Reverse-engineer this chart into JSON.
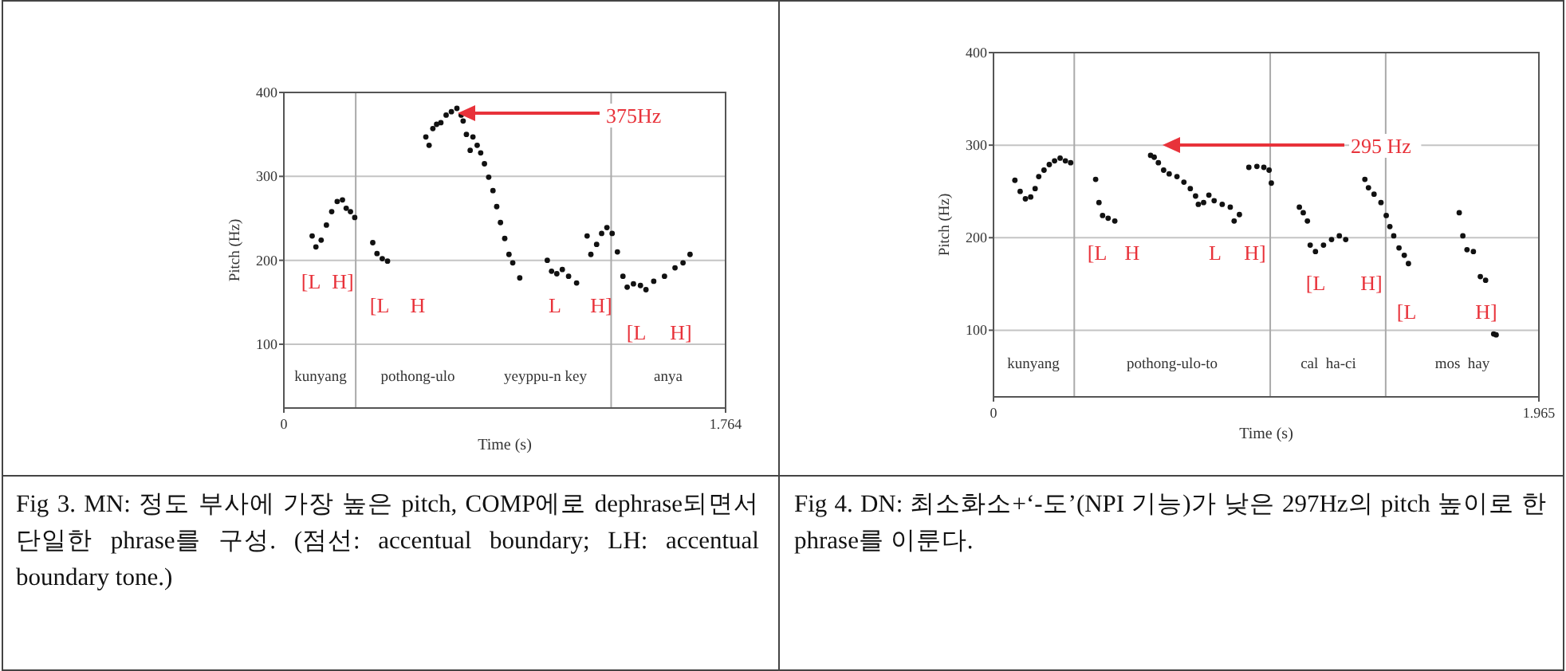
{
  "chart_data": [
    {
      "type": "scatter",
      "xlabel": "Time (s)",
      "ylabel": "Pitch (Hz)",
      "xlim": [
        0,
        1.764
      ],
      "xticks": [
        0,
        1.764
      ],
      "ylim": [
        24,
        400
      ],
      "yticks": [
        100,
        200,
        300,
        400
      ],
      "grid": "y",
      "marker": "circle",
      "series": [
        {
          "color": "#111111",
          "x": [
            0.113,
            0.128,
            0.149,
            0.17,
            0.191,
            0.213,
            0.234,
            0.249,
            0.266,
            0.283,
            0.355,
            0.372,
            0.393,
            0.414,
            0.567,
            0.58,
            0.595,
            0.61,
            0.627,
            0.648,
            0.669,
            0.691,
            0.708,
            0.716,
            0.729,
            0.744,
            0.755,
            0.772,
            0.786,
            0.801,
            0.818,
            0.835,
            0.85,
            0.865,
            0.882,
            0.899,
            0.914,
            0.942,
            1.052,
            1.069,
            1.09,
            1.112,
            1.137,
            1.169,
            1.211,
            1.226,
            1.249,
            1.269,
            1.29,
            1.311,
            1.332,
            1.354,
            1.371,
            1.396,
            1.424,
            1.446,
            1.477,
            1.52,
            1.562,
            1.594,
            1.622
          ],
          "values": [
            229,
            216,
            224,
            242,
            258,
            270,
            272,
            262,
            258,
            251,
            221,
            208,
            202,
            199,
            347,
            337,
            357,
            362,
            364,
            373,
            377,
            381,
            373,
            366,
            350,
            331,
            347,
            337,
            328,
            315,
            299,
            283,
            264,
            245,
            226,
            207,
            197,
            179,
            200,
            187,
            184,
            189,
            181,
            173,
            229,
            207,
            219,
            232,
            239,
            232,
            210,
            181,
            168,
            172,
            170,
            165,
            175,
            181,
            191,
            197,
            207
          ]
        }
      ],
      "ref_lines": [
        {
          "axis": "x",
          "value": 0.287
        },
        {
          "axis": "x",
          "value": 1.307
        }
      ],
      "annotations": [
        "375Hz",
        "[L",
        "H]",
        "[L",
        "H",
        "L",
        "H]",
        "[L",
        "H]",
        "kunyang",
        "pothong-ulo",
        "yeyppu-n key",
        "anya",
        "Fig 3. MN: 정도 부사에 가장 높은 pitch, COMP에로 dephrase되면서 단일한 phrase를 구성. (점선: accentual boundary; LH: accentual boundary tone.)"
      ]
    },
    {
      "type": "scatter",
      "xlabel": "Time (s)",
      "ylabel": "Pitch (Hz)",
      "xlim": [
        0,
        1.965
      ],
      "xticks": [
        0,
        1.965
      ],
      "ylim": [
        28,
        400
      ],
      "yticks": [
        100,
        200,
        300,
        400
      ],
      "grid": "y",
      "marker": "circle",
      "series": [
        {
          "color": "#111111",
          "x": [
            0.077,
            0.096,
            0.115,
            0.134,
            0.15,
            0.163,
            0.182,
            0.201,
            0.22,
            0.24,
            0.259,
            0.278,
            0.368,
            0.38,
            0.393,
            0.413,
            0.437,
            0.566,
            0.579,
            0.594,
            0.613,
            0.633,
            0.661,
            0.686,
            0.709,
            0.728,
            0.738,
            0.757,
            0.776,
            0.795,
            0.824,
            0.853,
            0.867,
            0.886,
            0.92,
            0.949,
            0.974,
            0.993,
            1.001,
            1.102,
            1.116,
            1.131,
            1.141,
            1.16,
            1.189,
            1.218,
            1.246,
            1.269,
            1.338,
            1.351,
            1.371,
            1.396,
            1.415,
            1.428,
            1.442,
            1.461,
            1.48,
            1.495,
            1.678,
            1.691,
            1.706,
            1.729,
            1.754,
            1.773,
            1.802,
            1.811
          ],
          "values": [
            262,
            250,
            242,
            244,
            253,
            266,
            273,
            279,
            283,
            286,
            283,
            281,
            263,
            238,
            224,
            221,
            218,
            289,
            287,
            281,
            273,
            269,
            266,
            260,
            253,
            245,
            236,
            238,
            246,
            240,
            236,
            233,
            218,
            225,
            276,
            277,
            276,
            273,
            259,
            233,
            227,
            218,
            192,
            185,
            192,
            198,
            202,
            198,
            263,
            254,
            247,
            238,
            224,
            212,
            202,
            189,
            181,
            172,
            227,
            202,
            187,
            185,
            158,
            154,
            96,
            95
          ]
        }
      ],
      "ref_lines": [
        {
          "axis": "x",
          "value": 0.291
        },
        {
          "axis": "x",
          "value": 0.997
        },
        {
          "axis": "x",
          "value": 1.413
        }
      ],
      "annotations": [
        "295 Hz",
        "[L",
        "H",
        "L",
        "H]",
        "[L",
        "H]",
        "[L",
        "H]",
        "kunyang",
        "pothong-ulo-to",
        "cal  ha-ci",
        "mos  hay",
        "Fig 4. DN: 최소화소+‘-도’(NPI 기능)가 낮은 297Hz의 pitch 높이로 한 phrase를 이룬다."
      ]
    }
  ]
}
